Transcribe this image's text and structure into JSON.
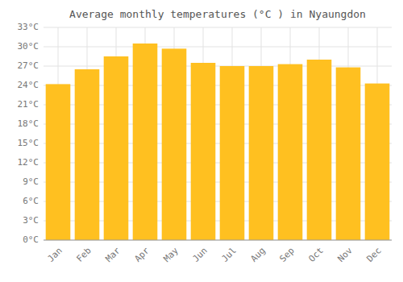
{
  "chart_data": {
    "type": "bar",
    "title": "Average monthly temperatures (°C ) in Nyaungdon",
    "categories": [
      "Jan",
      "Feb",
      "Mar",
      "Apr",
      "May",
      "Jun",
      "Jul",
      "Aug",
      "Sep",
      "Oct",
      "Nov",
      "Dec"
    ],
    "values": [
      24.2,
      26.5,
      28.5,
      30.5,
      29.7,
      27.5,
      27.0,
      27.0,
      27.3,
      28.0,
      26.8,
      24.3
    ],
    "color": "#FFC020",
    "ylim": [
      0,
      33
    ],
    "yticks": [
      {
        "value": 0,
        "label": "0°C"
      },
      {
        "value": 3,
        "label": "3°C"
      },
      {
        "value": 6,
        "label": "6°C"
      },
      {
        "value": 9,
        "label": "9°C"
      },
      {
        "value": 12,
        "label": "12°C"
      },
      {
        "value": 15,
        "label": "15°C"
      },
      {
        "value": 18,
        "label": "18°C"
      },
      {
        "value": 21,
        "label": "21°C"
      },
      {
        "value": 24,
        "label": "24°C"
      },
      {
        "value": 27,
        "label": "27°C"
      },
      {
        "value": 30,
        "label": "30°C"
      },
      {
        "value": 33,
        "label": "33°C"
      }
    ],
    "grid": true
  }
}
